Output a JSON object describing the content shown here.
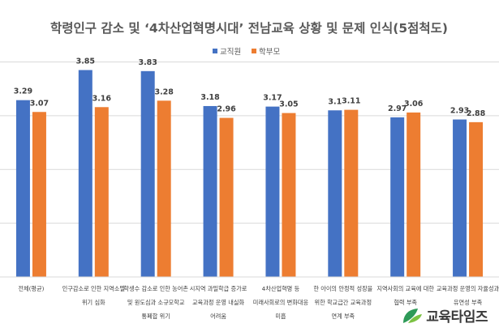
{
  "chart_data": {
    "type": "bar",
    "title": "학령인구 감소 및 ‘4차산업혁명시대’ 전남교육 상황 및 문제 인식(5점척도)",
    "xlabel": "",
    "ylabel": "",
    "ylim": [
      0,
      4.4
    ],
    "grid": true,
    "legend_position": "top-center",
    "categories": [
      [
        "전체(평균)"
      ],
      [
        "인구감소로 인한 지역소멸",
        "위기 심화"
      ],
      [
        "학생수 감소로 인한 농어촌",
        "및 원도심과 소규모학교",
        "통폐합 위기"
      ],
      [
        "시지역 과밀학급 증가로",
        "교육과정 운영 내실화",
        "어려움"
      ],
      [
        "4차산업혁명 등",
        "미래사회로의 변화대응",
        "미흡"
      ],
      [
        "한 아이의 안정적 성장을",
        "위한 학교급간 교육과정",
        "연계 부족"
      ],
      [
        "지역사회의 교육에 대한",
        "협력 부족"
      ],
      [
        "교육과정 운영의 자율성과",
        "유연성 부족"
      ]
    ],
    "series": [
      {
        "name": "교직원",
        "color": "#4472c4",
        "values": [
          3.29,
          3.85,
          3.83,
          3.18,
          3.17,
          3.1,
          2.97,
          2.93
        ]
      },
      {
        "name": "학부모",
        "color": "#ed7d31",
        "values": [
          3.07,
          3.16,
          3.28,
          2.96,
          3.05,
          3.11,
          3.06,
          2.88
        ]
      }
    ],
    "data_labels": [
      [
        "3.29",
        "3.85",
        "3.83",
        "3.18",
        "3.17",
        "3.1",
        "2.97",
        "2.93"
      ],
      [
        "3.07",
        "3.16",
        "3.28",
        "2.96",
        "3.05",
        "3.11",
        "3.06",
        "2.88"
      ]
    ]
  },
  "watermark": {
    "text": "교육타임즈",
    "colors": {
      "leaf_a": "#2e9a58",
      "leaf_b": "#7cc243"
    }
  }
}
